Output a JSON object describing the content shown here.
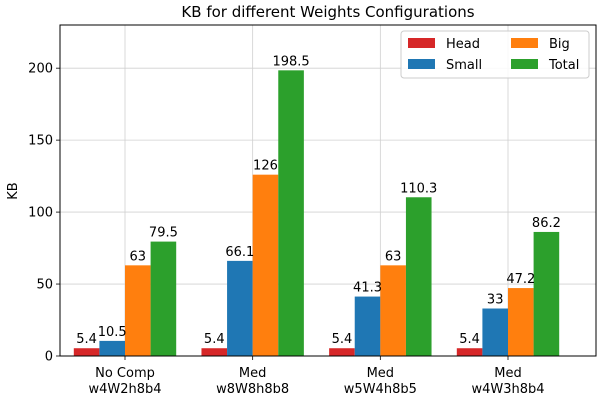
{
  "chart_data": {
    "type": "bar",
    "title": "KB for different Weights Configurations",
    "xlabel": "",
    "ylabel": "KB",
    "ylim": [
      0,
      230
    ],
    "yticks": [
      0,
      50,
      100,
      150,
      200
    ],
    "grid": true,
    "legend_position": "top-right",
    "categories": [
      [
        "No Comp",
        "w4W2h8b4"
      ],
      [
        "Med",
        "w8W8h8b8"
      ],
      [
        "Med",
        "w5W4h8b5"
      ],
      [
        "Med",
        "w4W3h8b4"
      ]
    ],
    "series": [
      {
        "name": "Head",
        "color": "#d62728",
        "values": [
          5.4,
          5.4,
          5.4,
          5.4
        ],
        "labels": [
          "5.4",
          "5.4",
          "5.4",
          "5.4"
        ]
      },
      {
        "name": "Small",
        "color": "#1f77b4",
        "values": [
          10.5,
          66.1,
          41.3,
          33
        ],
        "labels": [
          "10.5",
          "66.1",
          "41.3",
          "33"
        ]
      },
      {
        "name": "Big",
        "color": "#ff7f0e",
        "values": [
          63,
          126,
          63,
          47.2
        ],
        "labels": [
          "63",
          "126",
          "63",
          "47.2"
        ]
      },
      {
        "name": "Total",
        "color": "#2ca02c",
        "values": [
          79.5,
          198.5,
          110.3,
          86.2
        ],
        "labels": [
          "79.5",
          "198.5",
          "110.3",
          "86.2"
        ]
      }
    ]
  }
}
